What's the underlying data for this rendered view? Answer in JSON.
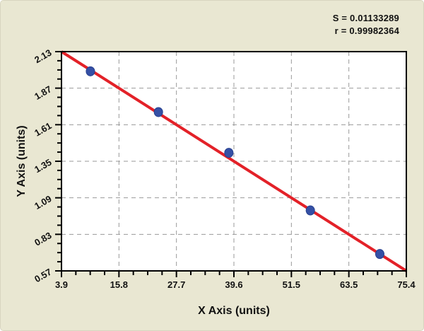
{
  "figure": {
    "background_color": "#e9e7d2",
    "plot_background_color": "#ffffff"
  },
  "chart_data": {
    "type": "scatter",
    "title": "",
    "xlabel": "X Axis (units)",
    "ylabel": "Y Axis (units)",
    "xlim": [
      3.9,
      75.4
    ],
    "ylim": [
      0.57,
      2.13
    ],
    "x_ticks": [
      3.9,
      15.8,
      27.7,
      39.6,
      51.5,
      63.5,
      75.4
    ],
    "y_ticks": [
      0.57,
      0.83,
      1.09,
      1.35,
      1.61,
      1.87,
      2.13
    ],
    "grid": true,
    "legend": "none",
    "points": [
      {
        "x": 9.9,
        "y": 1.99
      },
      {
        "x": 24.0,
        "y": 1.7
      },
      {
        "x": 38.6,
        "y": 1.41
      },
      {
        "x": 55.5,
        "y": 1.0
      },
      {
        "x": 69.9,
        "y": 0.69
      }
    ],
    "fit_line": {
      "x1": 3.9,
      "y1": 2.13,
      "x2": 75.4,
      "y2": 0.57
    },
    "annotations": {
      "s": "S = 0.01133289",
      "r": "r = 0.99982364"
    },
    "colors": {
      "line": "#e32128",
      "marker": "#3550a5",
      "marker_edge": "#27408f",
      "grid": "#999999",
      "axis": "#000000",
      "text": "#111111"
    }
  }
}
